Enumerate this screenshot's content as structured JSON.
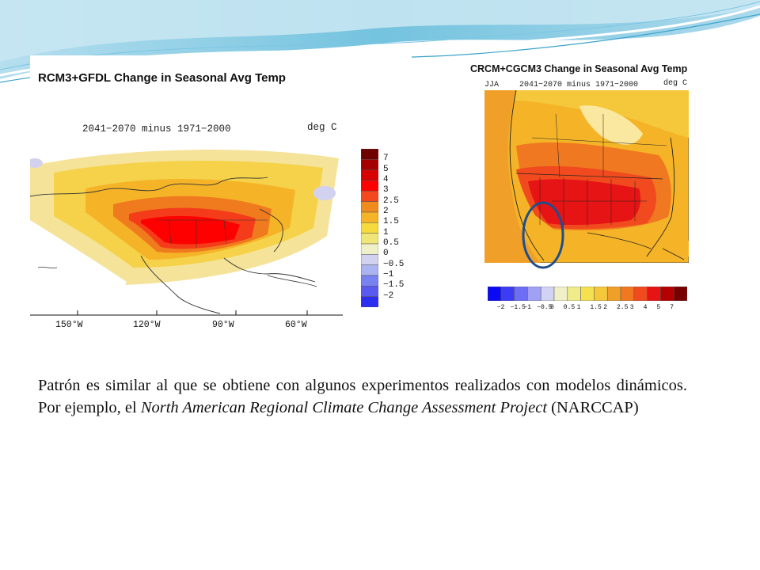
{
  "left_map": {
    "title": "RCM3+GFDL Change in Seasonal Avg Temp",
    "period": "2041−2070 minus 1971−2000",
    "unit": "deg C",
    "lon_labels": [
      "150°W",
      "120°W",
      "90°W",
      "60°W"
    ],
    "colorbar": {
      "labels": [
        "7",
        "5",
        "4",
        "3",
        "2.5",
        "2",
        "1.5",
        "1",
        "0.5",
        "0",
        "−0.5",
        "−1",
        "−1.5",
        "−2"
      ],
      "colors": [
        "#6e0000",
        "#a50000",
        "#d70000",
        "#ff0000",
        "#f4481e",
        "#f08c1e",
        "#f5b428",
        "#f5dc3c",
        "#f0e678",
        "#f0f0c8",
        "#d2d2f0",
        "#aab4f0",
        "#7882f0",
        "#5a5af0",
        "#2d2df0"
      ]
    }
  },
  "right_map": {
    "title": "CRCM+CGCM3 Change in Seasonal Avg Temp",
    "season": "JJA",
    "period": "2041−2070 minus 1971−2000",
    "unit": "deg C",
    "colorbar": {
      "labels": [
        "−2",
        "−1.5",
        "−1",
        "−0.5",
        "0",
        "0.5",
        "1",
        "1.5",
        "2",
        "2.5",
        "3",
        "4",
        "5",
        "7"
      ],
      "colors": [
        "#0a0af5",
        "#3c3cf5",
        "#6e6ef5",
        "#a0a0f5",
        "#d2d2f5",
        "#f0f0c8",
        "#f0ec8c",
        "#f5e050",
        "#f5c83c",
        "#f0a028",
        "#f07820",
        "#f04a1e",
        "#e61414",
        "#b40000",
        "#780000"
      ]
    },
    "annotation": "blue-ellipse"
  },
  "caption": {
    "part1": "Patrón es similar al que se obtiene con algunos experimentos realizados con modelos dinámicos. Por ejemplo, el ",
    "italic": "North American Regional Climate Change Assessment Project",
    "part2": " (NARCCAP)"
  },
  "colors": {
    "wave_blue": "#5bb8d9",
    "wave_light": "#c6e6f2",
    "annotation_ellipse": "#1f4e8c"
  }
}
